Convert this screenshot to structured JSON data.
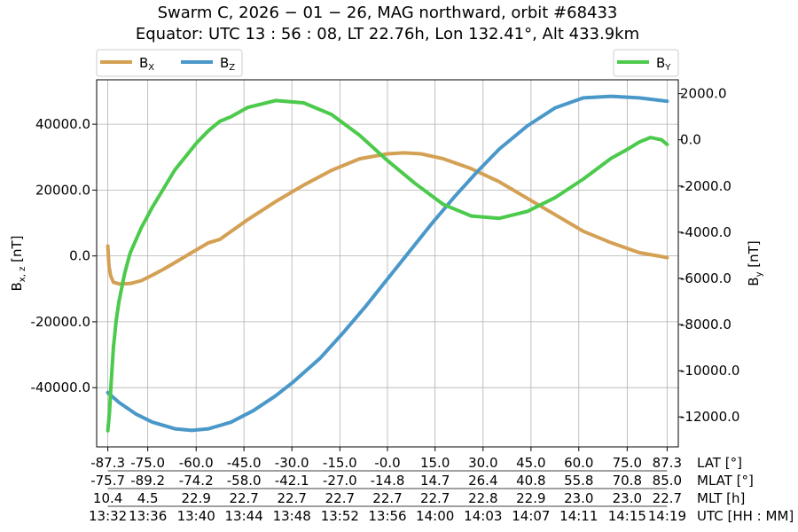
{
  "chart_data": {
    "type": "line",
    "title_line1": "Swarm C,  2026 − 01 − 26,  MAG northward,  orbit #68433",
    "title_line2": "Equator:  UTC 13 : 56 : 08,  LT 22.76h,  Lon 132.41°,  Alt 433.9km",
    "ylabel_left": "B",
    "ylabel_left_sub": "x, z",
    "ylabel_left_unit": " [nT]",
    "ylabel_right": "B",
    "ylabel_right_sub": "y",
    "ylabel_right_unit": " [nT]",
    "x_range": [
      -2,
      102
    ],
    "ylim_left": [
      -58000,
      53500
    ],
    "ylim_right": [
      -13300,
      2600
    ],
    "left_ticks": [
      "-40000.0",
      "-20000.0",
      "0.0",
      "20000.0",
      "40000.0"
    ],
    "left_tick_values": [
      -40000,
      -20000,
      0,
      20000,
      40000
    ],
    "right_ticks": [
      "-12000.0",
      "-10000.0",
      "-8000.0",
      "-6000.0",
      "-4000.0",
      "-2000.0",
      "0.0",
      "2000.0"
    ],
    "right_tick_values": [
      -12000,
      -10000,
      -8000,
      -6000,
      -4000,
      -2000,
      0,
      2000
    ],
    "grid": true,
    "x_positions": [
      0,
      7.14,
      15.79,
      24.34,
      32.91,
      41.49,
      50,
      58.51,
      67.09,
      75.66,
      84.21,
      92.86,
      100
    ],
    "x_tick_rows": [
      {
        "label": "LAT [°]",
        "values": [
          "-87.3",
          "-75.0",
          "-60.0",
          "-45.0",
          "-30.0",
          "-15.0",
          "-0.0",
          "15.0",
          "30.0",
          "45.0",
          "60.0",
          "75.0",
          "87.3"
        ]
      },
      {
        "label": "MLAT [°]",
        "values": [
          "-75.7",
          "-89.2",
          "-74.2",
          "-58.0",
          "-42.1",
          "-27.0",
          "-14.8",
          "14.7",
          "26.4",
          "40.8",
          "55.8",
          "70.8",
          "85.0"
        ]
      },
      {
        "label": "MLT [h]",
        "values": [
          "10.4",
          "4.5",
          "22.9",
          "22.7",
          "22.7",
          "22.7",
          "22.7",
          "22.7",
          "22.8",
          "22.9",
          "23.0",
          "23.0",
          "22.7"
        ]
      },
      {
        "label": "UTC [HH : MM]",
        "values": [
          "13:32",
          "13:36",
          "13:40",
          "13:44",
          "13:48",
          "13:52",
          "13:56",
          "14:00",
          "14:03",
          "14:07",
          "14:11",
          "14:15",
          "14:19"
        ]
      }
    ],
    "legend_left_placement": "top-left, above plot",
    "legend_right_placement": "top-right, above plot",
    "series": [
      {
        "name": "B",
        "sub": "X",
        "axis": "left",
        "color": "#d4a054",
        "x": [
          0,
          0.2,
          0.5,
          1,
          2,
          4,
          6,
          8,
          10,
          12,
          15,
          18,
          20,
          25,
          30,
          35,
          40,
          45,
          50,
          53,
          56,
          60,
          65,
          70,
          75,
          80,
          85,
          90,
          95,
          100
        ],
        "values": [
          3000,
          -3000,
          -6000,
          -8000,
          -8500,
          -8400,
          -7500,
          -5800,
          -4000,
          -2000,
          1000,
          4000,
          5000,
          11000,
          16500,
          21500,
          26000,
          29500,
          31000,
          31300,
          31000,
          29500,
          26500,
          22500,
          17500,
          12500,
          7500,
          4000,
          1000,
          -500
        ]
      },
      {
        "name": "B",
        "sub": "Z",
        "axis": "left",
        "color": "#4a98c9",
        "x": [
          0,
          2,
          5,
          8,
          12,
          15,
          18,
          22,
          26,
          30,
          33,
          38,
          42,
          46,
          50,
          54,
          58,
          62,
          66,
          70,
          75,
          80,
          85,
          90,
          95,
          100
        ],
        "values": [
          -41500,
          -44500,
          -48000,
          -50500,
          -52500,
          -53000,
          -52500,
          -50500,
          -47000,
          -42500,
          -38500,
          -31000,
          -23500,
          -15500,
          -7000,
          1500,
          10000,
          18000,
          25500,
          32500,
          39500,
          45000,
          48000,
          48500,
          48000,
          47000
        ]
      },
      {
        "name": "B",
        "sub": "Y",
        "axis": "right",
        "color": "#4cca4c",
        "x": [
          0,
          0.3,
          0.6,
          1,
          1.5,
          2,
          3,
          4,
          6,
          8,
          10,
          12,
          14,
          16,
          18,
          20,
          22,
          25,
          30,
          35,
          40,
          45,
          50,
          55,
          60,
          65,
          70,
          75,
          80,
          85,
          90,
          93,
          95,
          97,
          99,
          100
        ],
        "values": [
          -12600,
          -11800,
          -10500,
          -9000,
          -7800,
          -7000,
          -5800,
          -4900,
          -3800,
          -2900,
          -2100,
          -1300,
          -700,
          -100,
          400,
          800,
          1000,
          1400,
          1700,
          1600,
          1100,
          200,
          -900,
          -1900,
          -2800,
          -3300,
          -3400,
          -3100,
          -2500,
          -1700,
          -800,
          -400,
          -100,
          100,
          0,
          -200
        ]
      }
    ]
  }
}
